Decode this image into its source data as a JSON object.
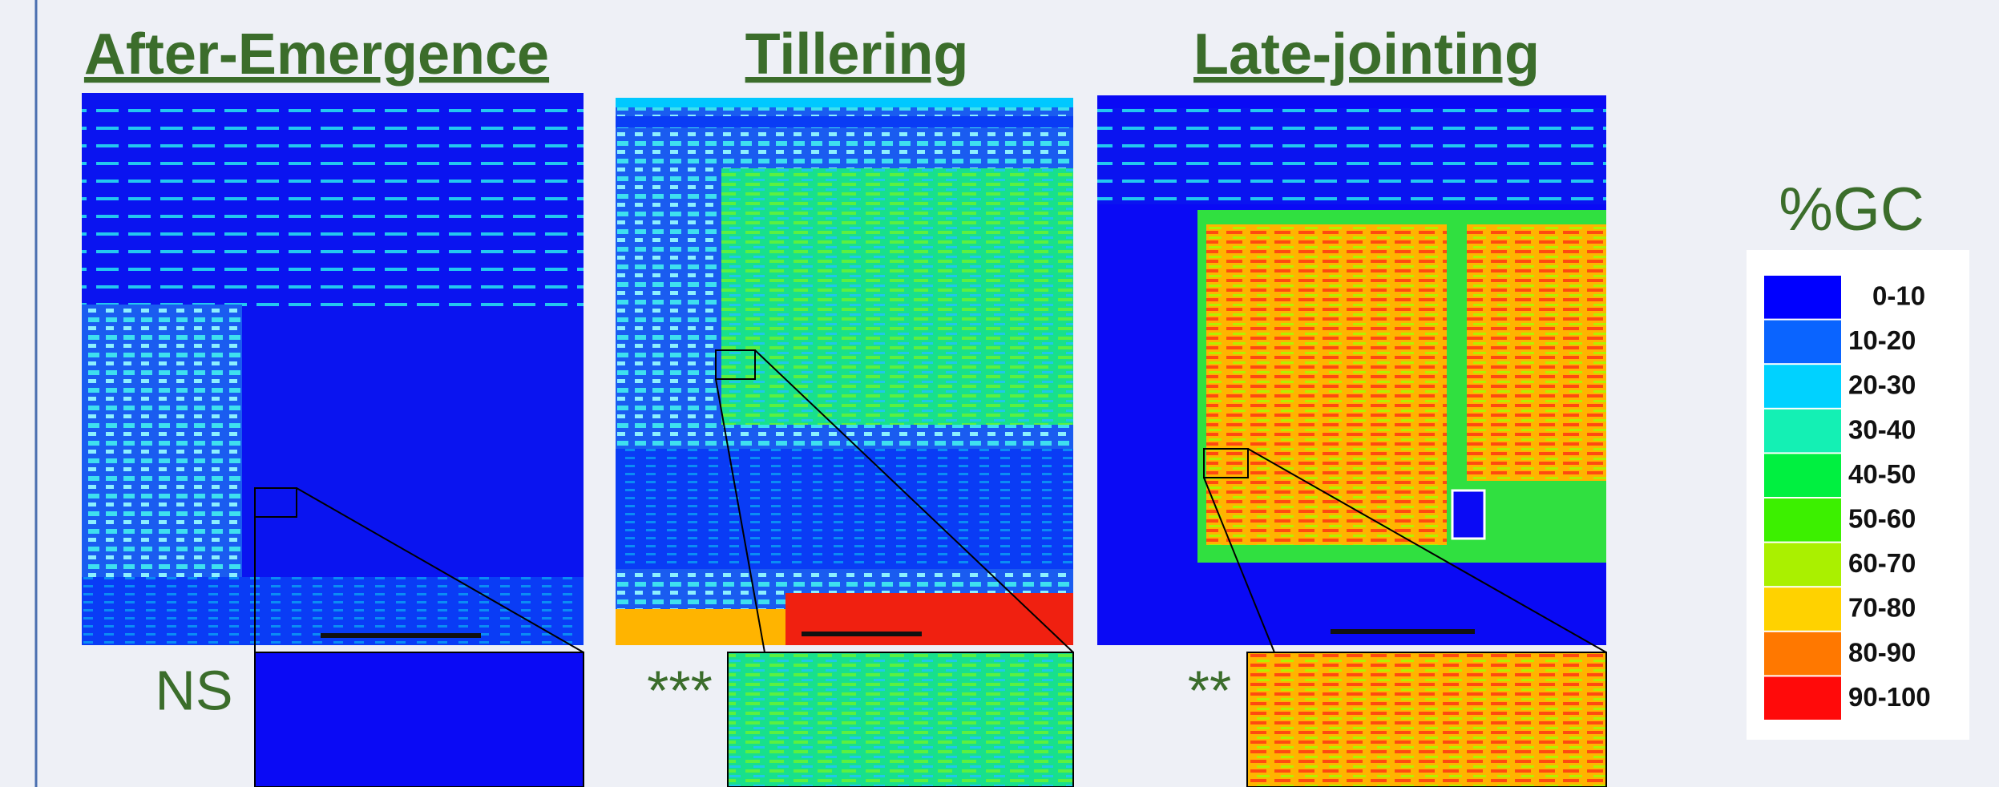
{
  "panels": [
    {
      "title": "After-Emergence",
      "significance": "NS"
    },
    {
      "title": "Tillering",
      "significance": "***"
    },
    {
      "title": "Late-jointing",
      "significance": "**"
    }
  ],
  "legend": {
    "title": "%GC",
    "items": [
      {
        "label": "0-10",
        "color": "#0000ff"
      },
      {
        "label": "10-20",
        "color": "#0a64ff"
      },
      {
        "label": "20-30",
        "color": "#00d2ff"
      },
      {
        "label": "30-40",
        "color": "#14f0b4"
      },
      {
        "label": "40-50",
        "color": "#00f040"
      },
      {
        "label": "50-60",
        "color": "#3cf000"
      },
      {
        "label": "60-70",
        "color": "#aaf000"
      },
      {
        "label": "70-80",
        "color": "#ffd200"
      },
      {
        "label": "80-90",
        "color": "#ff7800"
      },
      {
        "label": "90-100",
        "color": "#ff0a0a"
      }
    ]
  }
}
